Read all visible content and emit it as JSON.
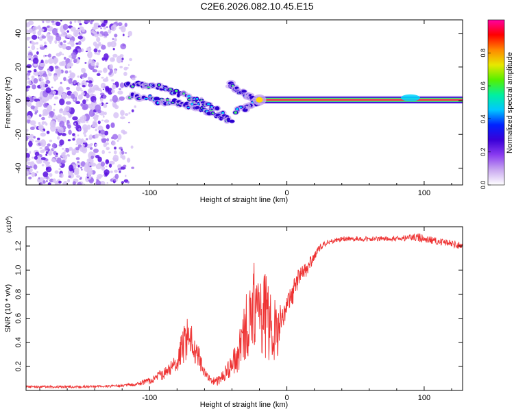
{
  "title": "C2E6.2026.082.10.45.E15",
  "chart_data": [
    {
      "type": "heatmap",
      "title": "C2E6.2026.082.10.45.E15",
      "xlabel": "Height of straight line (km)",
      "ylabel": "Frequency (Hz)",
      "xlim": [
        -190,
        128
      ],
      "ylim": [
        -50,
        48
      ],
      "xticks": [
        -100,
        0,
        100
      ],
      "xtick_labels": [
        "-100",
        "0",
        "100"
      ],
      "yticks": [
        40,
        20,
        0,
        -20,
        -40
      ],
      "ytick_labels": [
        "40",
        "20",
        "0",
        "-20",
        "-40"
      ],
      "colorbar": {
        "label": "Normalized spectral amplitude",
        "range": [
          0,
          1
        ],
        "ticks": [
          0.0,
          0.2,
          0.4,
          0.6,
          0.8
        ],
        "tick_labels": [
          "0.0",
          "0.2",
          "0.4",
          "0.6",
          "0.8"
        ],
        "colors": [
          "#ffffff",
          "#c9a8f0",
          "#8a3cf0",
          "#3a00d8",
          "#0022ff",
          "#00c8ff",
          "#00f0a0",
          "#55f000",
          "#e8e800",
          "#ff8800",
          "#ff0000",
          "#ff00a0"
        ]
      },
      "features": [
        {
          "name": "diffuse noise",
          "x_range": [
            -190,
            -108
          ],
          "freq_range": [
            -50,
            48
          ],
          "amplitude": 0.15
        },
        {
          "name": "first descending branch",
          "points": [
            [
              -118,
              10
            ],
            [
              -104,
              9
            ],
            [
              -92,
              8
            ],
            [
              -80,
              5
            ],
            [
              -68,
              1
            ],
            [
              -55,
              -4
            ],
            [
              -45,
              -10
            ]
          ],
          "amplitude": 0.35
        },
        {
          "name": "second descending branch",
          "points": [
            [
              -115,
              3
            ],
            [
              -100,
              1
            ],
            [
              -90,
              -1
            ],
            [
              -80,
              -1
            ],
            [
              -70,
              -3
            ],
            [
              -60,
              -6
            ],
            [
              -48,
              -9
            ],
            [
              -40,
              -13
            ]
          ],
          "amplitude": 0.3
        },
        {
          "name": "cluster near -35 km",
          "points": [
            [
              -42,
              10
            ],
            [
              -36,
              7
            ],
            [
              -30,
              4
            ],
            [
              -26,
              2
            ],
            [
              -22,
              -1
            ],
            [
              -30,
              -4
            ],
            [
              -38,
              -6
            ]
          ],
          "amplitude": 0.35
        },
        {
          "name": "steady line",
          "x_range": [
            -22,
            128
          ],
          "freq": 0.5,
          "amplitude": 0.9
        }
      ]
    },
    {
      "type": "line",
      "xlabel": "Height of straight line (km)",
      "ylabel": "SNR (10 * v/v)",
      "scale_label": "(x10",
      "scale_exponent": "4",
      "xlim": [
        -190,
        128
      ],
      "ylim": [
        0,
        1.36
      ],
      "xticks": [
        -100,
        0,
        100
      ],
      "xtick_labels": [
        "-100",
        "0",
        "100"
      ],
      "yticks": [
        0.2,
        0.4,
        0.6,
        0.8,
        1.0,
        1.2
      ],
      "ytick_labels": [
        "0.2",
        "0.4",
        "0.6",
        "0.8",
        "1.0",
        "1.2"
      ],
      "series": [
        {
          "name": "SNR",
          "color": "#ee3333",
          "x": [
            -190,
            -170,
            -150,
            -130,
            -110,
            -100,
            -90,
            -82,
            -78,
            -75,
            -72,
            -70,
            -68,
            -65,
            -60,
            -55,
            -50,
            -45,
            -40,
            -36,
            -32,
            -28,
            -24,
            -20,
            -16,
            -12,
            -8,
            -4,
            0,
            4,
            8,
            10,
            14,
            18,
            22,
            26,
            30,
            35,
            40,
            50,
            60,
            70,
            80,
            90,
            95,
            100,
            110,
            120,
            128
          ],
          "y": [
            0.03,
            0.03,
            0.03,
            0.035,
            0.05,
            0.08,
            0.14,
            0.2,
            0.3,
            0.38,
            0.45,
            0.42,
            0.36,
            0.3,
            0.15,
            0.08,
            0.08,
            0.14,
            0.22,
            0.28,
            0.42,
            0.58,
            0.72,
            0.68,
            0.62,
            0.55,
            0.45,
            0.6,
            0.72,
            0.8,
            0.92,
            0.98,
            1.0,
            1.08,
            1.15,
            1.2,
            1.23,
            1.25,
            1.26,
            1.26,
            1.26,
            1.26,
            1.26,
            1.27,
            1.27,
            1.26,
            1.24,
            1.22,
            1.2
          ],
          "noise": [
            0.01,
            0.01,
            0.01,
            0.01,
            0.015,
            0.03,
            0.05,
            0.08,
            0.12,
            0.15,
            0.18,
            0.15,
            0.12,
            0.1,
            0.05,
            0.03,
            0.04,
            0.06,
            0.1,
            0.15,
            0.25,
            0.32,
            0.35,
            0.35,
            0.35,
            0.35,
            0.3,
            0.12,
            0.1,
            0.1,
            0.08,
            0.06,
            0.06,
            0.05,
            0.04,
            0.03,
            0.025,
            0.02,
            0.02,
            0.02,
            0.02,
            0.02,
            0.025,
            0.03,
            0.04,
            0.03,
            0.03,
            0.03,
            0.03
          ]
        }
      ]
    }
  ]
}
